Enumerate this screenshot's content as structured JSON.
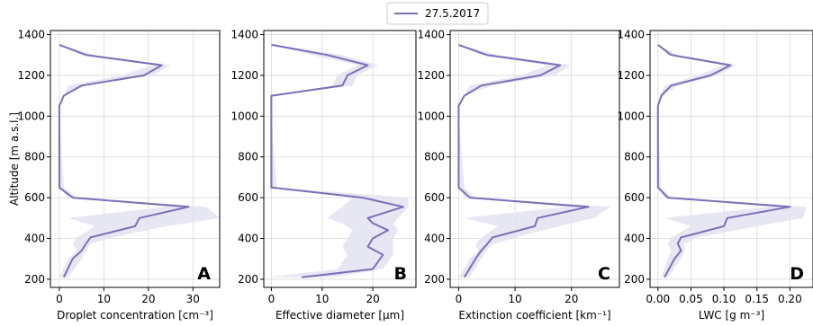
{
  "legend": {
    "label": "27.5.2017",
    "color": "#7b6fb8"
  },
  "y_axis": {
    "label": "Altitude [m a.s.l.]",
    "ticks": [
      200,
      400,
      600,
      800,
      1000,
      1200,
      1400
    ],
    "range": [
      160,
      1420
    ]
  },
  "colors": {
    "line": "#7b6fb8",
    "band": "#e3e3f1"
  },
  "chart_data": [
    {
      "type": "line",
      "panel": "A",
      "xlabel": "Droplet concentration [cm⁻³]",
      "xlim": [
        -2,
        36
      ],
      "x_ticks": [
        0,
        10,
        20,
        30
      ],
      "x_tick_labels": [
        "0",
        "10",
        "20",
        "30"
      ],
      "series": [
        {
          "name": "27.5.2017",
          "points": [
            [
              0,
              1350
            ],
            [
              6,
              1300
            ],
            [
              23,
              1250
            ],
            [
              19,
              1200
            ],
            [
              5,
              1150
            ],
            [
              1,
              1100
            ],
            [
              0,
              1050
            ],
            [
              0,
              1000
            ],
            [
              0,
              650
            ],
            [
              3,
              600
            ],
            [
              29,
              555
            ],
            [
              18,
              500
            ],
            [
              17,
              460
            ],
            [
              7,
              405
            ],
            [
              6,
              375
            ],
            [
              5,
              340
            ],
            [
              3,
              300
            ],
            [
              1,
              210
            ]
          ]
        }
      ],
      "band": [
        [
          0,
          1350,
          0,
          1350
        ],
        [
          5,
          1300,
          8,
          1300
        ],
        [
          21,
          1250,
          25,
          1250
        ],
        [
          14,
          1200,
          21,
          1200
        ],
        [
          2,
          1150,
          6,
          1150
        ],
        [
          1,
          1100,
          1,
          1100
        ],
        [
          0,
          1050,
          0,
          1050
        ],
        [
          0,
          1000,
          0,
          1000
        ],
        [
          0,
          650,
          1,
          650
        ],
        [
          2,
          600,
          4,
          600
        ],
        [
          24,
          555,
          33,
          555
        ],
        [
          2,
          500,
          36,
          500
        ],
        [
          8,
          460,
          24,
          460
        ],
        [
          4,
          405,
          12,
          405
        ],
        [
          3,
          375,
          7,
          375
        ],
        [
          4,
          340,
          6,
          340
        ],
        [
          2,
          300,
          5,
          300
        ],
        [
          0,
          210,
          2,
          210
        ]
      ]
    },
    {
      "type": "line",
      "panel": "B",
      "xlabel": "Effective diameter [μm]",
      "xlim": [
        -1.5,
        28.5
      ],
      "x_ticks": [
        0,
        10,
        20
      ],
      "x_tick_labels": [
        "0",
        "10",
        "20"
      ],
      "series": [
        {
          "name": "27.5.2017",
          "points": [
            [
              0,
              1350
            ],
            [
              11,
              1300
            ],
            [
              19,
              1250
            ],
            [
              15,
              1200
            ],
            [
              14,
              1150
            ],
            [
              0,
              1100
            ],
            [
              0,
              1000
            ],
            [
              0,
              650
            ],
            [
              18,
              600
            ],
            [
              26,
              555
            ],
            [
              19,
              500
            ],
            [
              20,
              475
            ],
            [
              23,
              440
            ],
            [
              20,
              400
            ],
            [
              19,
              360
            ],
            [
              22,
              320
            ],
            [
              20,
              250
            ],
            [
              6,
              210
            ]
          ]
        }
      ],
      "band": [
        [
          0,
          1350,
          1,
          1350
        ],
        [
          8,
          1300,
          14,
          1300
        ],
        [
          17,
          1250,
          21,
          1250
        ],
        [
          13,
          1200,
          17,
          1200
        ],
        [
          12,
          1150,
          16,
          1150
        ],
        [
          0,
          1100,
          0,
          1100
        ],
        [
          0,
          1000,
          0,
          1000
        ],
        [
          0,
          650,
          1,
          650
        ],
        [
          16,
          600,
          27,
          600
        ],
        [
          14,
          555,
          27,
          555
        ],
        [
          11,
          500,
          25,
          500
        ],
        [
          14,
          475,
          24,
          475
        ],
        [
          16,
          440,
          25,
          440
        ],
        [
          15,
          400,
          24,
          400
        ],
        [
          14,
          360,
          24,
          360
        ],
        [
          15,
          320,
          24,
          320
        ],
        [
          13,
          250,
          22,
          250
        ],
        [
          -1,
          210,
          12,
          210
        ]
      ]
    },
    {
      "type": "line",
      "panel": "C",
      "xlabel": "Extinction coefficient [km⁻¹]",
      "xlim": [
        -1.5,
        28.5
      ],
      "x_ticks": [
        0,
        10,
        20
      ],
      "x_tick_labels": [
        "0",
        "10",
        "20"
      ],
      "series": [
        {
          "name": "27.5.2017",
          "points": [
            [
              0,
              1350
            ],
            [
              5,
              1300
            ],
            [
              18,
              1250
            ],
            [
              14.5,
              1200
            ],
            [
              4,
              1150
            ],
            [
              1,
              1100
            ],
            [
              0,
              1050
            ],
            [
              0,
              1000
            ],
            [
              0,
              650
            ],
            [
              2,
              600
            ],
            [
              23,
              555
            ],
            [
              14,
              500
            ],
            [
              13.5,
              460
            ],
            [
              6,
              405
            ],
            [
              5,
              370
            ],
            [
              4,
              340
            ],
            [
              3,
              300
            ],
            [
              1,
              210
            ]
          ]
        }
      ],
      "band": [
        [
          0,
          1350,
          0,
          1350
        ],
        [
          4,
          1300,
          7,
          1300
        ],
        [
          16,
          1250,
          20,
          1250
        ],
        [
          11,
          1200,
          17,
          1200
        ],
        [
          2,
          1150,
          6,
          1150
        ],
        [
          1,
          1100,
          1,
          1100
        ],
        [
          0,
          1050,
          0,
          1050
        ],
        [
          0,
          1000,
          0,
          1000
        ],
        [
          0,
          650,
          1,
          650
        ],
        [
          1,
          600,
          3,
          600
        ],
        [
          19,
          555,
          27,
          555
        ],
        [
          1,
          500,
          24,
          500
        ],
        [
          7,
          460,
          18,
          460
        ],
        [
          4,
          405,
          10,
          405
        ],
        [
          3,
          370,
          6,
          370
        ],
        [
          3.5,
          340,
          5,
          340
        ],
        [
          2,
          300,
          4,
          300
        ],
        [
          0,
          210,
          2,
          210
        ]
      ]
    },
    {
      "type": "line",
      "panel": "D",
      "xlabel": "LWC [g m⁻³]",
      "xlim": [
        -0.012,
        0.235
      ],
      "x_ticks": [
        0.0,
        0.05,
        0.1,
        0.15,
        0.2
      ],
      "x_tick_labels": [
        "0.00",
        "0.05",
        "0.10",
        "0.15",
        "0.20"
      ],
      "series": [
        {
          "name": "27.5.2017",
          "points": [
            [
              0,
              1350
            ],
            [
              0.02,
              1300
            ],
            [
              0.11,
              1250
            ],
            [
              0.08,
              1200
            ],
            [
              0.02,
              1150
            ],
            [
              0.005,
              1100
            ],
            [
              0,
              1050
            ],
            [
              0,
              1000
            ],
            [
              0,
              650
            ],
            [
              0.015,
              600
            ],
            [
              0.2,
              555
            ],
            [
              0.105,
              500
            ],
            [
              0.1,
              460
            ],
            [
              0.035,
              405
            ],
            [
              0.03,
              375
            ],
            [
              0.035,
              340
            ],
            [
              0.025,
              300
            ],
            [
              0.01,
              210
            ]
          ]
        }
      ],
      "band": [
        [
          0,
          1350,
          0,
          1350
        ],
        [
          0.015,
          1300,
          0.03,
          1300
        ],
        [
          0.1,
          1250,
          0.12,
          1250
        ],
        [
          0.06,
          1200,
          0.09,
          1200
        ],
        [
          0.01,
          1150,
          0.03,
          1150
        ],
        [
          0.003,
          1100,
          0.008,
          1100
        ],
        [
          0,
          1050,
          0,
          1050
        ],
        [
          0,
          1000,
          0,
          1000
        ],
        [
          0,
          650,
          0.005,
          650
        ],
        [
          0.01,
          600,
          0.02,
          600
        ],
        [
          0.17,
          555,
          0.225,
          555
        ],
        [
          0.01,
          500,
          0.22,
          500
        ],
        [
          0.05,
          460,
          0.15,
          460
        ],
        [
          0.02,
          405,
          0.06,
          405
        ],
        [
          0.015,
          375,
          0.04,
          375
        ],
        [
          0.02,
          340,
          0.04,
          340
        ],
        [
          0.015,
          300,
          0.035,
          300
        ],
        [
          0.005,
          210,
          0.015,
          210
        ]
      ]
    }
  ]
}
